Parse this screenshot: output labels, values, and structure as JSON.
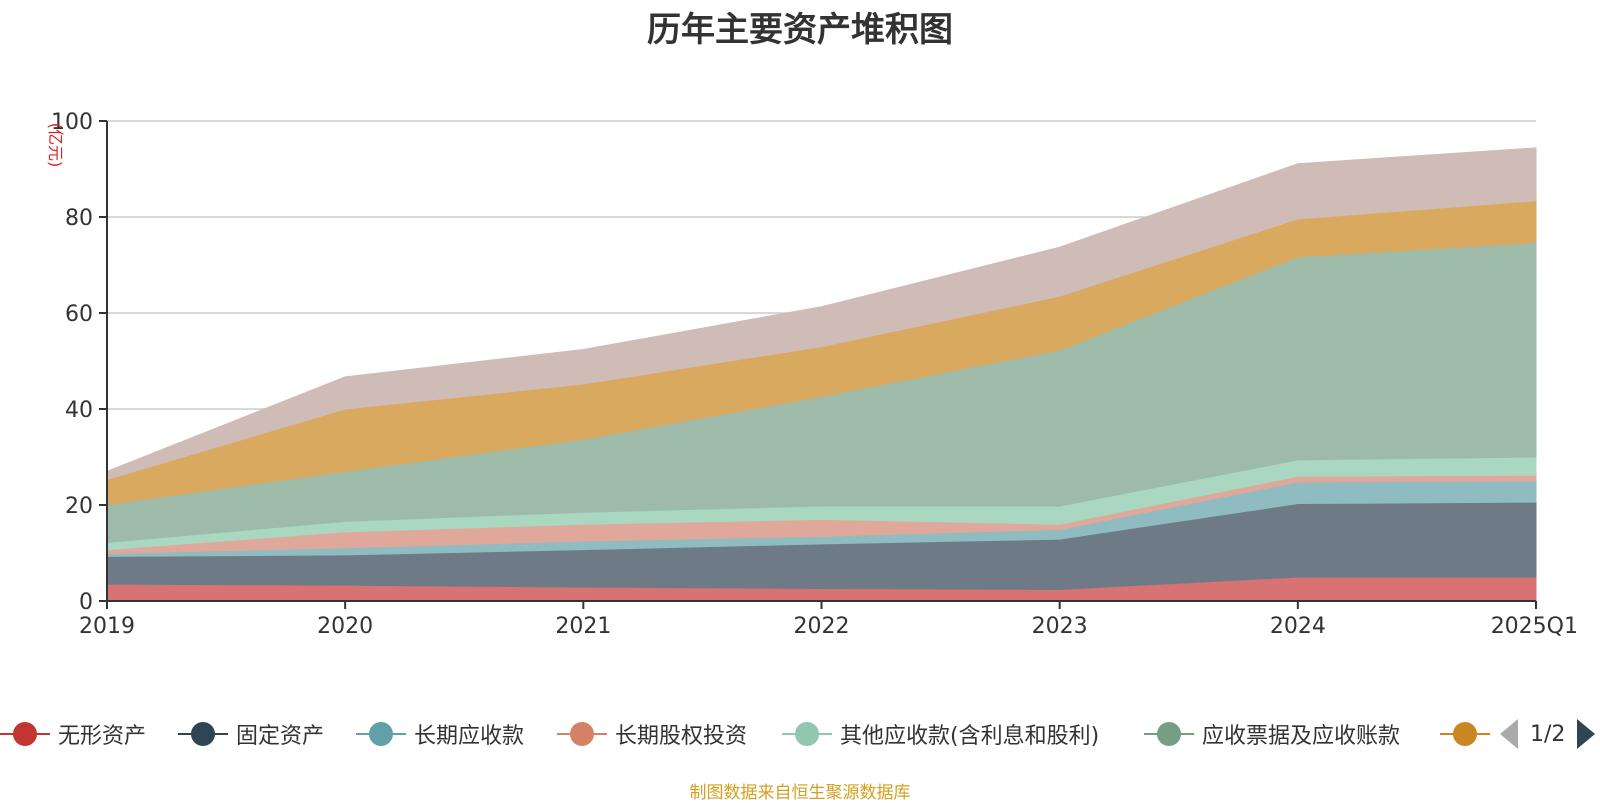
{
  "colors": {
    "source_text": "#d4a020",
    "unit_text": "#e02020"
  },
  "chart_data": {
    "type": "area",
    "stacked": true,
    "title": "历年主要资产堆积图",
    "unit": "(亿元)",
    "categories": [
      "2019",
      "2020",
      "2021",
      "2022",
      "2023",
      "2024",
      "2025Q1"
    ],
    "ylim": [
      0,
      100
    ],
    "yticks": [
      0,
      20,
      40,
      60,
      80,
      100
    ],
    "grid": true,
    "series": [
      {
        "name": "无形资产",
        "legend_color": "#c23531",
        "fill": "#d87373",
        "values": [
          3.5,
          3.3,
          2.9,
          2.6,
          2.4,
          5.0,
          5.0
        ]
      },
      {
        "name": "固定资产",
        "legend_color": "#2f4554",
        "fill": "#6e7b86",
        "values": [
          5.8,
          6.3,
          7.8,
          9.3,
          10.5,
          15.3,
          15.6
        ]
      },
      {
        "name": "长期应收款",
        "legend_color": "#61a0a8",
        "fill": "#8fbcc1",
        "values": [
          0.6,
          1.5,
          1.8,
          1.6,
          2.0,
          4.5,
          4.4
        ]
      },
      {
        "name": "长期股权投资",
        "legend_color": "#d48265",
        "fill": "#e0a89a",
        "values": [
          0.8,
          3.3,
          3.5,
          3.5,
          1.1,
          1.2,
          1.2
        ]
      },
      {
        "name": "其他应收款(含利息和股利)",
        "legend_color": "#91c7ae",
        "fill": "#a9d7c0",
        "values": [
          1.5,
          2.2,
          2.5,
          2.8,
          3.8,
          3.4,
          3.8
        ]
      },
      {
        "name": "应收票据及应收账款",
        "legend_color": "#749f83",
        "fill": "#9dbba8",
        "values": [
          7.9,
          10.4,
          15.2,
          22.8,
          32.5,
          42.3,
          44.7
        ]
      },
      {
        "name": "",
        "legend_color": "#ca8622",
        "fill": "#d9a960",
        "values": [
          5.2,
          13.0,
          11.5,
          10.4,
          11.2,
          7.9,
          8.7
        ]
      },
      {
        "name": "",
        "legend_color": "#bda29a",
        "fill": "#cfbcb6",
        "values": [
          1.7,
          6.7,
          7.2,
          8.3,
          10.2,
          11.5,
          11.0
        ]
      }
    ]
  },
  "legend": {
    "pager_text": "1/2"
  },
  "source": {
    "text": "制图数据来自恒生聚源数据库"
  }
}
